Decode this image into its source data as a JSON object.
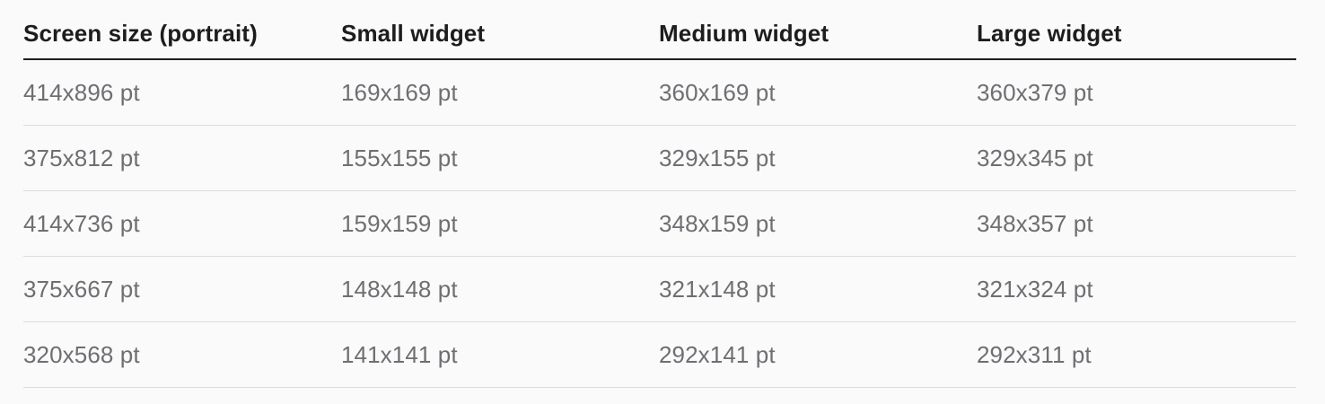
{
  "table": {
    "headers": [
      "Screen size (portrait)",
      "Small widget",
      "Medium widget",
      "Large widget"
    ],
    "rows": [
      [
        "414x896 pt",
        "169x169 pt",
        "360x169 pt",
        "360x379 pt"
      ],
      [
        "375x812 pt",
        "155x155 pt",
        "329x155 pt",
        "329x345 pt"
      ],
      [
        "414x736 pt",
        "159x159 pt",
        "348x159 pt",
        "348x357 pt"
      ],
      [
        "375x667 pt",
        "148x148 pt",
        "321x148 pt",
        "321x324 pt"
      ],
      [
        "320x568 pt",
        "141x141 pt",
        "292x141 pt",
        "292x311 pt"
      ]
    ]
  },
  "colors": {
    "header_text": "#1d1d1f",
    "cell_text": "#6e6e73",
    "row_divider": "#dcdcdc",
    "background": "#fafafa"
  }
}
